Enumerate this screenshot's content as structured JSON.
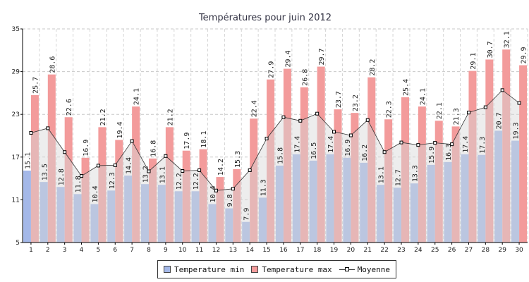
{
  "chart_data": {
    "type": "bar",
    "title": "Températures pour juin 2012",
    "categories": [
      "1",
      "2",
      "3",
      "4",
      "5",
      "6",
      "7",
      "8",
      "9",
      "10",
      "11",
      "12",
      "13",
      "14",
      "15",
      "16",
      "17",
      "18",
      "19",
      "20",
      "21",
      "22",
      "23",
      "24",
      "25",
      "26",
      "27",
      "28",
      "29",
      "30"
    ],
    "series": [
      {
        "name": "Temperature min",
        "type": "bar",
        "color": "#a4b8e8",
        "values": [
          15.1,
          13.5,
          12.8,
          11.8,
          10.4,
          12.3,
          14.4,
          13.2,
          13.1,
          12.2,
          12.2,
          10.4,
          9.8,
          7.9,
          11.3,
          15.8,
          17.4,
          16.5,
          17.4,
          16.9,
          16.2,
          13.1,
          12.7,
          13.3,
          15.9,
          16.3,
          17.4,
          17.3,
          20.7,
          19.3
        ]
      },
      {
        "name": "Temperature max",
        "type": "bar",
        "color": "#f39b9b",
        "values": [
          25.7,
          28.6,
          22.6,
          16.9,
          21.2,
          19.4,
          24.1,
          16.8,
          21.2,
          17.9,
          18.1,
          14.2,
          15.3,
          22.4,
          27.9,
          29.4,
          26.8,
          29.7,
          23.7,
          23.2,
          28.2,
          22.3,
          25.4,
          24.1,
          22.1,
          21.3,
          29.1,
          30.7,
          32.1,
          29.9
        ]
      },
      {
        "name": "Moyenne",
        "type": "line",
        "color": "#333333",
        "values": [
          20.4,
          21.05,
          17.7,
          14.35,
          15.8,
          15.85,
          19.25,
          15.0,
          17.15,
          15.05,
          15.15,
          12.3,
          12.55,
          15.15,
          19.6,
          22.6,
          22.1,
          23.1,
          20.55,
          20.05,
          22.2,
          17.7,
          19.05,
          18.7,
          19.0,
          18.8,
          23.25,
          24.0,
          26.4,
          24.6
        ]
      }
    ],
    "ylim": [
      5,
      35
    ],
    "yticks": [
      5,
      11,
      17,
      23,
      29,
      35
    ],
    "xlabel": "",
    "ylabel": "",
    "grid": true,
    "legend": "bottom-center"
  }
}
